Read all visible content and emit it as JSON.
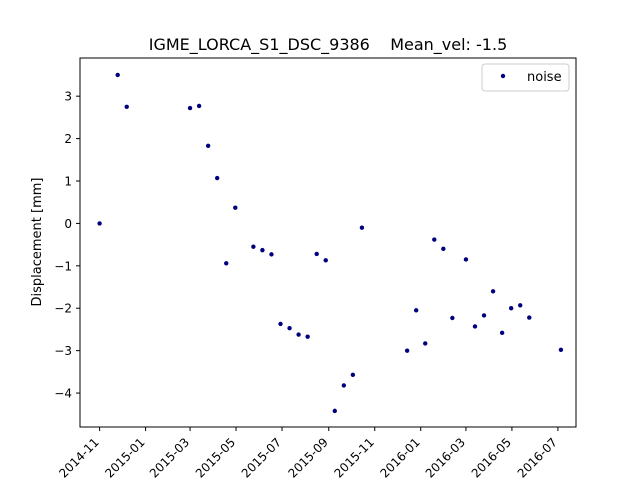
{
  "chart_data": {
    "type": "scatter",
    "title": "IGME_LORCA_S1_DSC_9386    Mean_vel: -1.5",
    "xlabel": "",
    "ylabel": "Displacement [mm]",
    "xlim": [
      "2014-10-06",
      "2016-07-25"
    ],
    "ylim": [
      -4.8,
      3.9
    ],
    "x_ticks": [
      "2014-11",
      "2015-01",
      "2015-03",
      "2015-05",
      "2015-07",
      "2015-09",
      "2015-11",
      "2016-01",
      "2016-03",
      "2016-05",
      "2016-07"
    ],
    "y_ticks": [
      -4,
      -3,
      -2,
      -1,
      0,
      1,
      2,
      3
    ],
    "y_tick_labels": [
      "−4",
      "−3",
      "−2",
      "−1",
      "0",
      "1",
      "2",
      "3"
    ],
    "grid": false,
    "legend_position": "top-right",
    "series": [
      {
        "name": "noise",
        "color": "#00007f",
        "x": [
          "2014-11-01",
          "2014-11-25",
          "2014-12-07",
          "2015-03-01",
          "2015-03-13",
          "2015-03-25",
          "2015-04-06",
          "2015-04-18",
          "2015-04-30",
          "2015-05-24",
          "2015-06-05",
          "2015-06-17",
          "2015-06-29",
          "2015-07-11",
          "2015-07-23",
          "2015-08-04",
          "2015-08-16",
          "2015-08-28",
          "2015-09-09",
          "2015-09-21",
          "2015-10-03",
          "2015-10-15",
          "2015-12-14",
          "2015-12-26",
          "2016-01-07",
          "2016-01-19",
          "2016-01-31",
          "2016-02-12",
          "2016-03-01",
          "2016-03-13",
          "2016-03-25",
          "2016-04-06",
          "2016-04-18",
          "2016-04-30",
          "2016-05-12",
          "2016-05-24",
          "2016-07-05"
        ],
        "y": [
          0.0,
          3.5,
          2.75,
          2.72,
          2.77,
          1.83,
          1.07,
          -0.94,
          0.37,
          -0.55,
          -0.63,
          -0.73,
          -2.37,
          -2.47,
          -2.62,
          -2.67,
          -0.72,
          -0.87,
          -4.42,
          -3.82,
          -3.57,
          -0.1,
          -3.0,
          -2.05,
          -2.83,
          -0.38,
          -0.6,
          -2.23,
          -0.85,
          -2.43,
          -2.17,
          -1.6,
          -2.58,
          -2.0,
          -1.93,
          -2.22,
          -2.98
        ]
      }
    ]
  }
}
